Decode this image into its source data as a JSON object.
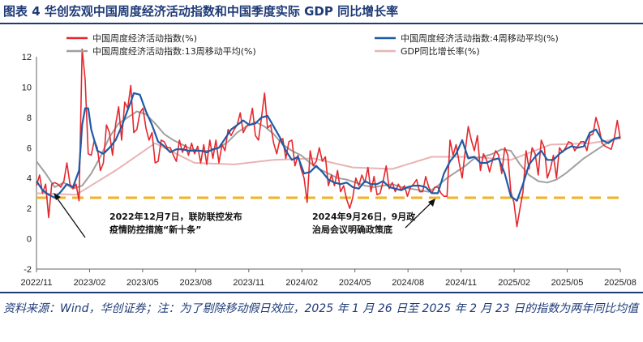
{
  "title": "图表 4   华创宏观中国周度经济活动指数和中国季度实际 GDP 同比增长率",
  "source": "资料来源：Wind，华创证券；注：为了剔除移动假日效应，2025 年 1 月 26 日至 2025 年 2 月 23 日的指数为两年同比均值",
  "chart_data": {
    "type": "line",
    "ylim": [
      -2,
      12
    ],
    "yticks": [
      -2,
      0,
      2,
      4,
      6,
      8,
      10,
      12
    ],
    "xticks": [
      "2022/11",
      "2023/02",
      "2023/05",
      "2023/08",
      "2023/11",
      "2024/02",
      "2024/05",
      "2024/08",
      "2024/11",
      "2025/02",
      "2025/05",
      "2025/08"
    ],
    "reference_line": {
      "y": 2.7,
      "color": "#f0b323"
    },
    "annotations": [
      {
        "lines": [
          "2022年12月7日，联防联控发布",
          "疫情防控措施“新十条”"
        ],
        "x": "2022/12/07"
      },
      {
        "lines": [
          "2024年9月26日，9月政",
          "治局会议明确政策底"
        ],
        "x": "2024/09/26"
      }
    ],
    "series": [
      {
        "name": "中国周度经济活动指数(%)",
        "color": "#e5282d",
        "x": [
          0,
          1,
          2,
          3,
          4,
          5,
          6,
          7,
          8,
          9,
          10,
          11,
          12,
          13,
          14,
          15,
          16,
          17,
          18,
          19,
          20,
          21,
          22,
          23,
          24,
          25,
          26,
          27,
          28,
          29,
          30,
          31,
          32,
          33,
          34,
          35,
          36,
          37,
          38,
          39,
          40,
          41,
          42,
          43,
          44,
          45,
          46,
          47,
          48,
          49,
          50,
          51,
          52,
          53,
          54,
          55,
          56,
          57,
          58,
          59,
          60,
          61,
          62,
          63,
          64,
          65,
          66,
          67,
          68,
          69,
          70,
          71,
          72,
          73,
          74,
          75,
          76,
          77,
          78,
          79,
          80,
          81,
          82,
          83,
          84,
          85,
          86,
          87,
          88,
          89,
          90,
          91,
          92,
          93,
          94,
          95,
          96,
          97,
          98,
          99,
          100,
          101,
          102,
          103,
          104,
          105,
          106,
          107,
          108,
          109,
          110,
          111,
          112,
          113,
          114,
          115,
          116,
          117,
          118,
          119,
          120,
          121,
          122,
          123,
          124,
          125,
          126,
          127,
          128,
          129,
          130,
          131,
          132,
          133,
          134,
          135,
          136,
          137,
          138,
          139,
          140,
          141,
          142,
          143,
          144,
          145,
          146,
          147,
          148,
          149,
          150,
          151,
          152,
          153,
          154,
          155,
          156,
          157,
          158,
          159,
          160,
          161,
          162,
          163,
          164,
          165,
          166,
          167,
          168,
          169,
          170,
          171,
          172,
          173,
          174,
          175,
          176,
          177,
          178,
          179,
          180,
          181,
          182,
          183,
          184,
          185,
          186,
          187,
          188,
          189,
          190,
          191,
          192
        ],
        "values": [
          3.5,
          4.2,
          3.0,
          3.6,
          1.4,
          3.6,
          3.7,
          3.6,
          3.4,
          3.8,
          5.0,
          3.6,
          3.3,
          3.6,
          2.5,
          12.5,
          10.5,
          5.6,
          5.5,
          6.5,
          6.0,
          4.5,
          5.0,
          7.5,
          7.0,
          5.5,
          7.5,
          8.7,
          6.5,
          9.0,
          8.6,
          10.1,
          7.0,
          7.2,
          8.3,
          8.6,
          7.3,
          6.5,
          7.0,
          5.0,
          5.1,
          6.5,
          6.4,
          6.0,
          6.0,
          5.5,
          5.1,
          6.5,
          5.7,
          6.2,
          5.5,
          6.3,
          5.6,
          6.1,
          5.0,
          6.2,
          4.9,
          6.5,
          5.3,
          6.5,
          5.0,
          6.2,
          5.8,
          7.2,
          6.8,
          7.2,
          7.5,
          8.3,
          7.0,
          7.4,
          7.6,
          8.6,
          6.8,
          6.5,
          8.0,
          9.6,
          7.3,
          7.5,
          6.3,
          5.6,
          6.5,
          6.6,
          5.3,
          6.4,
          6.5,
          4.8,
          5.5,
          4.6,
          4.0,
          2.4,
          5.8,
          4.8,
          5.1,
          6.0,
          5.1,
          5.4,
          3.5,
          4.2,
          3.5,
          4.5,
          3.1,
          3.5,
          2.6,
          2.0,
          2.7,
          4.0,
          3.5,
          4.2,
          3.7,
          4.7,
          3.1,
          4.1,
          2.9,
          3.0,
          3.8,
          4.8,
          3.3,
          3.7,
          3.1,
          3.6,
          3.2,
          3.5,
          2.8,
          3.4,
          3.6,
          3.9,
          3.1,
          3.1,
          4.1,
          3.4,
          3.0,
          3.4,
          3.4,
          3.0,
          2.8,
          2.8,
          6.5,
          5.5,
          6.2,
          5.0,
          4.0,
          5.8,
          7.4,
          6.5,
          5.8,
          6.8,
          4.5,
          5.6,
          5.2,
          4.4,
          5.2,
          5.8,
          5.5,
          4.3,
          6.0,
          5.5,
          3.1,
          2.4,
          0.8,
          2.0,
          3.1,
          5.8,
          4.6,
          6.0,
          5.6,
          4.2,
          6.5,
          6.0,
          4.0,
          4.6,
          5.5,
          4.0,
          6.0,
          5.7,
          6.0,
          6.4,
          6.3,
          5.8,
          6.1,
          6.4,
          6.4,
          5.8,
          6.8,
          6.9,
          8.0,
          7.3,
          6.3,
          6.1,
          6.0,
          5.9,
          6.6,
          7.8,
          6.6
        ]
      },
      {
        "name": "中国周度经济活动指数:4周移动平均(%)",
        "color": "#1f5aa6",
        "x": [
          0,
          2,
          4,
          6,
          8,
          10,
          12,
          14,
          15,
          16,
          17,
          18,
          20,
          22,
          24,
          26,
          28,
          30,
          31,
          32,
          34,
          36,
          38,
          40,
          42,
          44,
          46,
          48,
          50,
          52,
          54,
          56,
          58,
          60,
          62,
          64,
          66,
          68,
          70,
          72,
          74,
          76,
          78,
          80,
          82,
          84,
          86,
          88,
          90,
          92,
          94,
          96,
          98,
          100,
          102,
          104,
          106,
          108,
          110,
          112,
          114,
          116,
          118,
          120,
          122,
          124,
          126,
          128,
          130,
          132,
          134,
          136,
          138,
          140,
          142,
          144,
          146,
          148,
          150,
          152,
          154,
          156,
          158,
          160,
          162,
          164,
          166,
          168,
          170,
          172,
          174,
          176,
          178,
          180,
          182,
          184,
          186,
          188,
          190,
          192
        ],
        "values": [
          3.8,
          3.2,
          2.9,
          2.7,
          3.1,
          3.6,
          3.4,
          4.5,
          7.5,
          8.6,
          8.6,
          7.2,
          5.8,
          5.6,
          6.0,
          6.5,
          7.4,
          8.5,
          9.0,
          9.6,
          9.5,
          8.4,
          7.5,
          6.4,
          6.1,
          5.7,
          5.9,
          5.9,
          5.8,
          5.8,
          5.8,
          5.7,
          5.9,
          6.0,
          6.6,
          7.2,
          7.5,
          7.8,
          7.5,
          7.6,
          8.0,
          8.1,
          7.4,
          6.7,
          5.8,
          5.2,
          5.4,
          4.3,
          4.4,
          4.8,
          4.4,
          3.9,
          3.7,
          3.6,
          3.7,
          3.4,
          3.3,
          3.8,
          3.6,
          3.6,
          3.8,
          3.4,
          3.3,
          3.2,
          3.4,
          3.5,
          3.5,
          3.4,
          3.0,
          3.0,
          4.3,
          5.1,
          5.6,
          6.5,
          5.3,
          5.4,
          5.0,
          5.0,
          5.2,
          5.3,
          4.3,
          2.8,
          2.5,
          3.6,
          4.9,
          5.4,
          5.8,
          5.2,
          5.2,
          5.6,
          5.9,
          6.1,
          6.0,
          6.1,
          7.0,
          7.2,
          6.5,
          6.3,
          6.6,
          6.7
        ]
      },
      {
        "name": "中国周度经济活动指数:13周移动平均(%)",
        "color": "#a0a0a0",
        "x": [
          0,
          3,
          6,
          9,
          12,
          15,
          18,
          21,
          24,
          27,
          30,
          33,
          36,
          39,
          42,
          45,
          48,
          51,
          54,
          57,
          60,
          63,
          66,
          69,
          72,
          75,
          78,
          81,
          84,
          87,
          90,
          93,
          96,
          99,
          102,
          105,
          108,
          111,
          114,
          117,
          120,
          123,
          126,
          129,
          132,
          135,
          138,
          141,
          144,
          147,
          150,
          153,
          156,
          159,
          162,
          165,
          168,
          171,
          174,
          177,
          180,
          183,
          186,
          189,
          192
        ],
        "values": [
          5.1,
          4.3,
          3.4,
          3.7,
          3.3,
          3.5,
          4.3,
          5.4,
          6.7,
          7.6,
          8.0,
          8.4,
          8.2,
          7.6,
          6.9,
          6.5,
          6.2,
          5.9,
          5.8,
          5.8,
          6.0,
          6.4,
          7.0,
          7.4,
          7.7,
          7.4,
          6.9,
          6.2,
          5.8,
          5.5,
          5.0,
          4.6,
          4.3,
          4.0,
          3.9,
          3.7,
          3.5,
          3.4,
          3.5,
          3.6,
          3.4,
          3.3,
          3.2,
          3.1,
          3.5,
          4.0,
          4.4,
          4.8,
          5.3,
          5.4,
          5.6,
          5.9,
          5.8,
          4.9,
          4.2,
          3.8,
          3.7,
          3.9,
          4.3,
          4.8,
          5.3,
          5.7,
          6.1,
          6.5,
          6.7
        ]
      },
      {
        "name": "GDP同比增长率(%)",
        "color": "#e8b4b4",
        "x": [
          0,
          13,
          26,
          39,
          52,
          65,
          78,
          91,
          104,
          117,
          130,
          143,
          156,
          169,
          182,
          192
        ],
        "values": [
          3.0,
          2.9,
          4.5,
          6.3,
          5.0,
          4.9,
          5.2,
          5.3,
          4.7,
          4.6,
          5.4,
          5.4,
          5.2,
          6.2,
          6.3,
          6.6
        ]
      }
    ]
  }
}
